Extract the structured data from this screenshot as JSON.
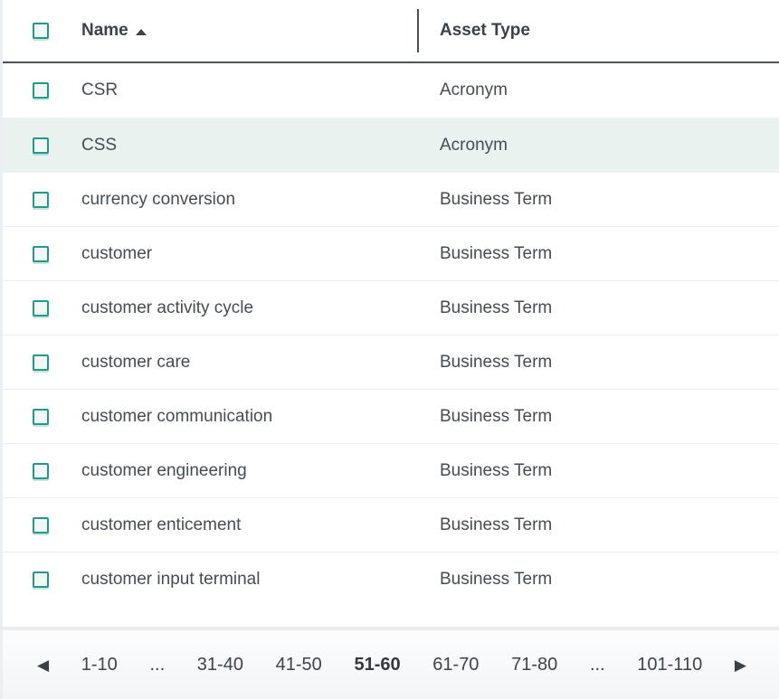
{
  "colors": {
    "accent_teal": "#219a87",
    "selected_row_bg": "#eaf2ef",
    "header_border": "#4d5458",
    "row_separator": "#edf0f2",
    "text_dark": "#3b4349",
    "text_body": "#454d52"
  },
  "table": {
    "columns": {
      "name": {
        "label": "Name",
        "sorted": "asc"
      },
      "asset_type": {
        "label": "Asset Type"
      }
    },
    "rows": [
      {
        "name": "CSR",
        "asset_type": "Acronym",
        "selected": false
      },
      {
        "name": "CSS",
        "asset_type": "Acronym",
        "selected": true
      },
      {
        "name": "currency conversion",
        "asset_type": "Business Term",
        "selected": false
      },
      {
        "name": "customer",
        "asset_type": "Business Term",
        "selected": false
      },
      {
        "name": "customer activity cycle",
        "asset_type": "Business Term",
        "selected": false
      },
      {
        "name": "customer care",
        "asset_type": "Business Term",
        "selected": false
      },
      {
        "name": "customer communication",
        "asset_type": "Business Term",
        "selected": false
      },
      {
        "name": "customer engineering",
        "asset_type": "Business Term",
        "selected": false
      },
      {
        "name": "customer enticement",
        "asset_type": "Business Term",
        "selected": false
      },
      {
        "name": "customer input terminal",
        "asset_type": "Business Term",
        "selected": false
      }
    ]
  },
  "pagination": {
    "prev_icon": "◀",
    "next_icon": "▶",
    "items": [
      {
        "label": "1-10",
        "current": false,
        "ellipsis": false
      },
      {
        "label": "...",
        "current": false,
        "ellipsis": true
      },
      {
        "label": "31-40",
        "current": false,
        "ellipsis": false
      },
      {
        "label": "41-50",
        "current": false,
        "ellipsis": false
      },
      {
        "label": "51-60",
        "current": true,
        "ellipsis": false
      },
      {
        "label": "61-70",
        "current": false,
        "ellipsis": false
      },
      {
        "label": "71-80",
        "current": false,
        "ellipsis": false
      },
      {
        "label": "...",
        "current": false,
        "ellipsis": true
      },
      {
        "label": "101-110",
        "current": false,
        "ellipsis": false
      }
    ]
  }
}
